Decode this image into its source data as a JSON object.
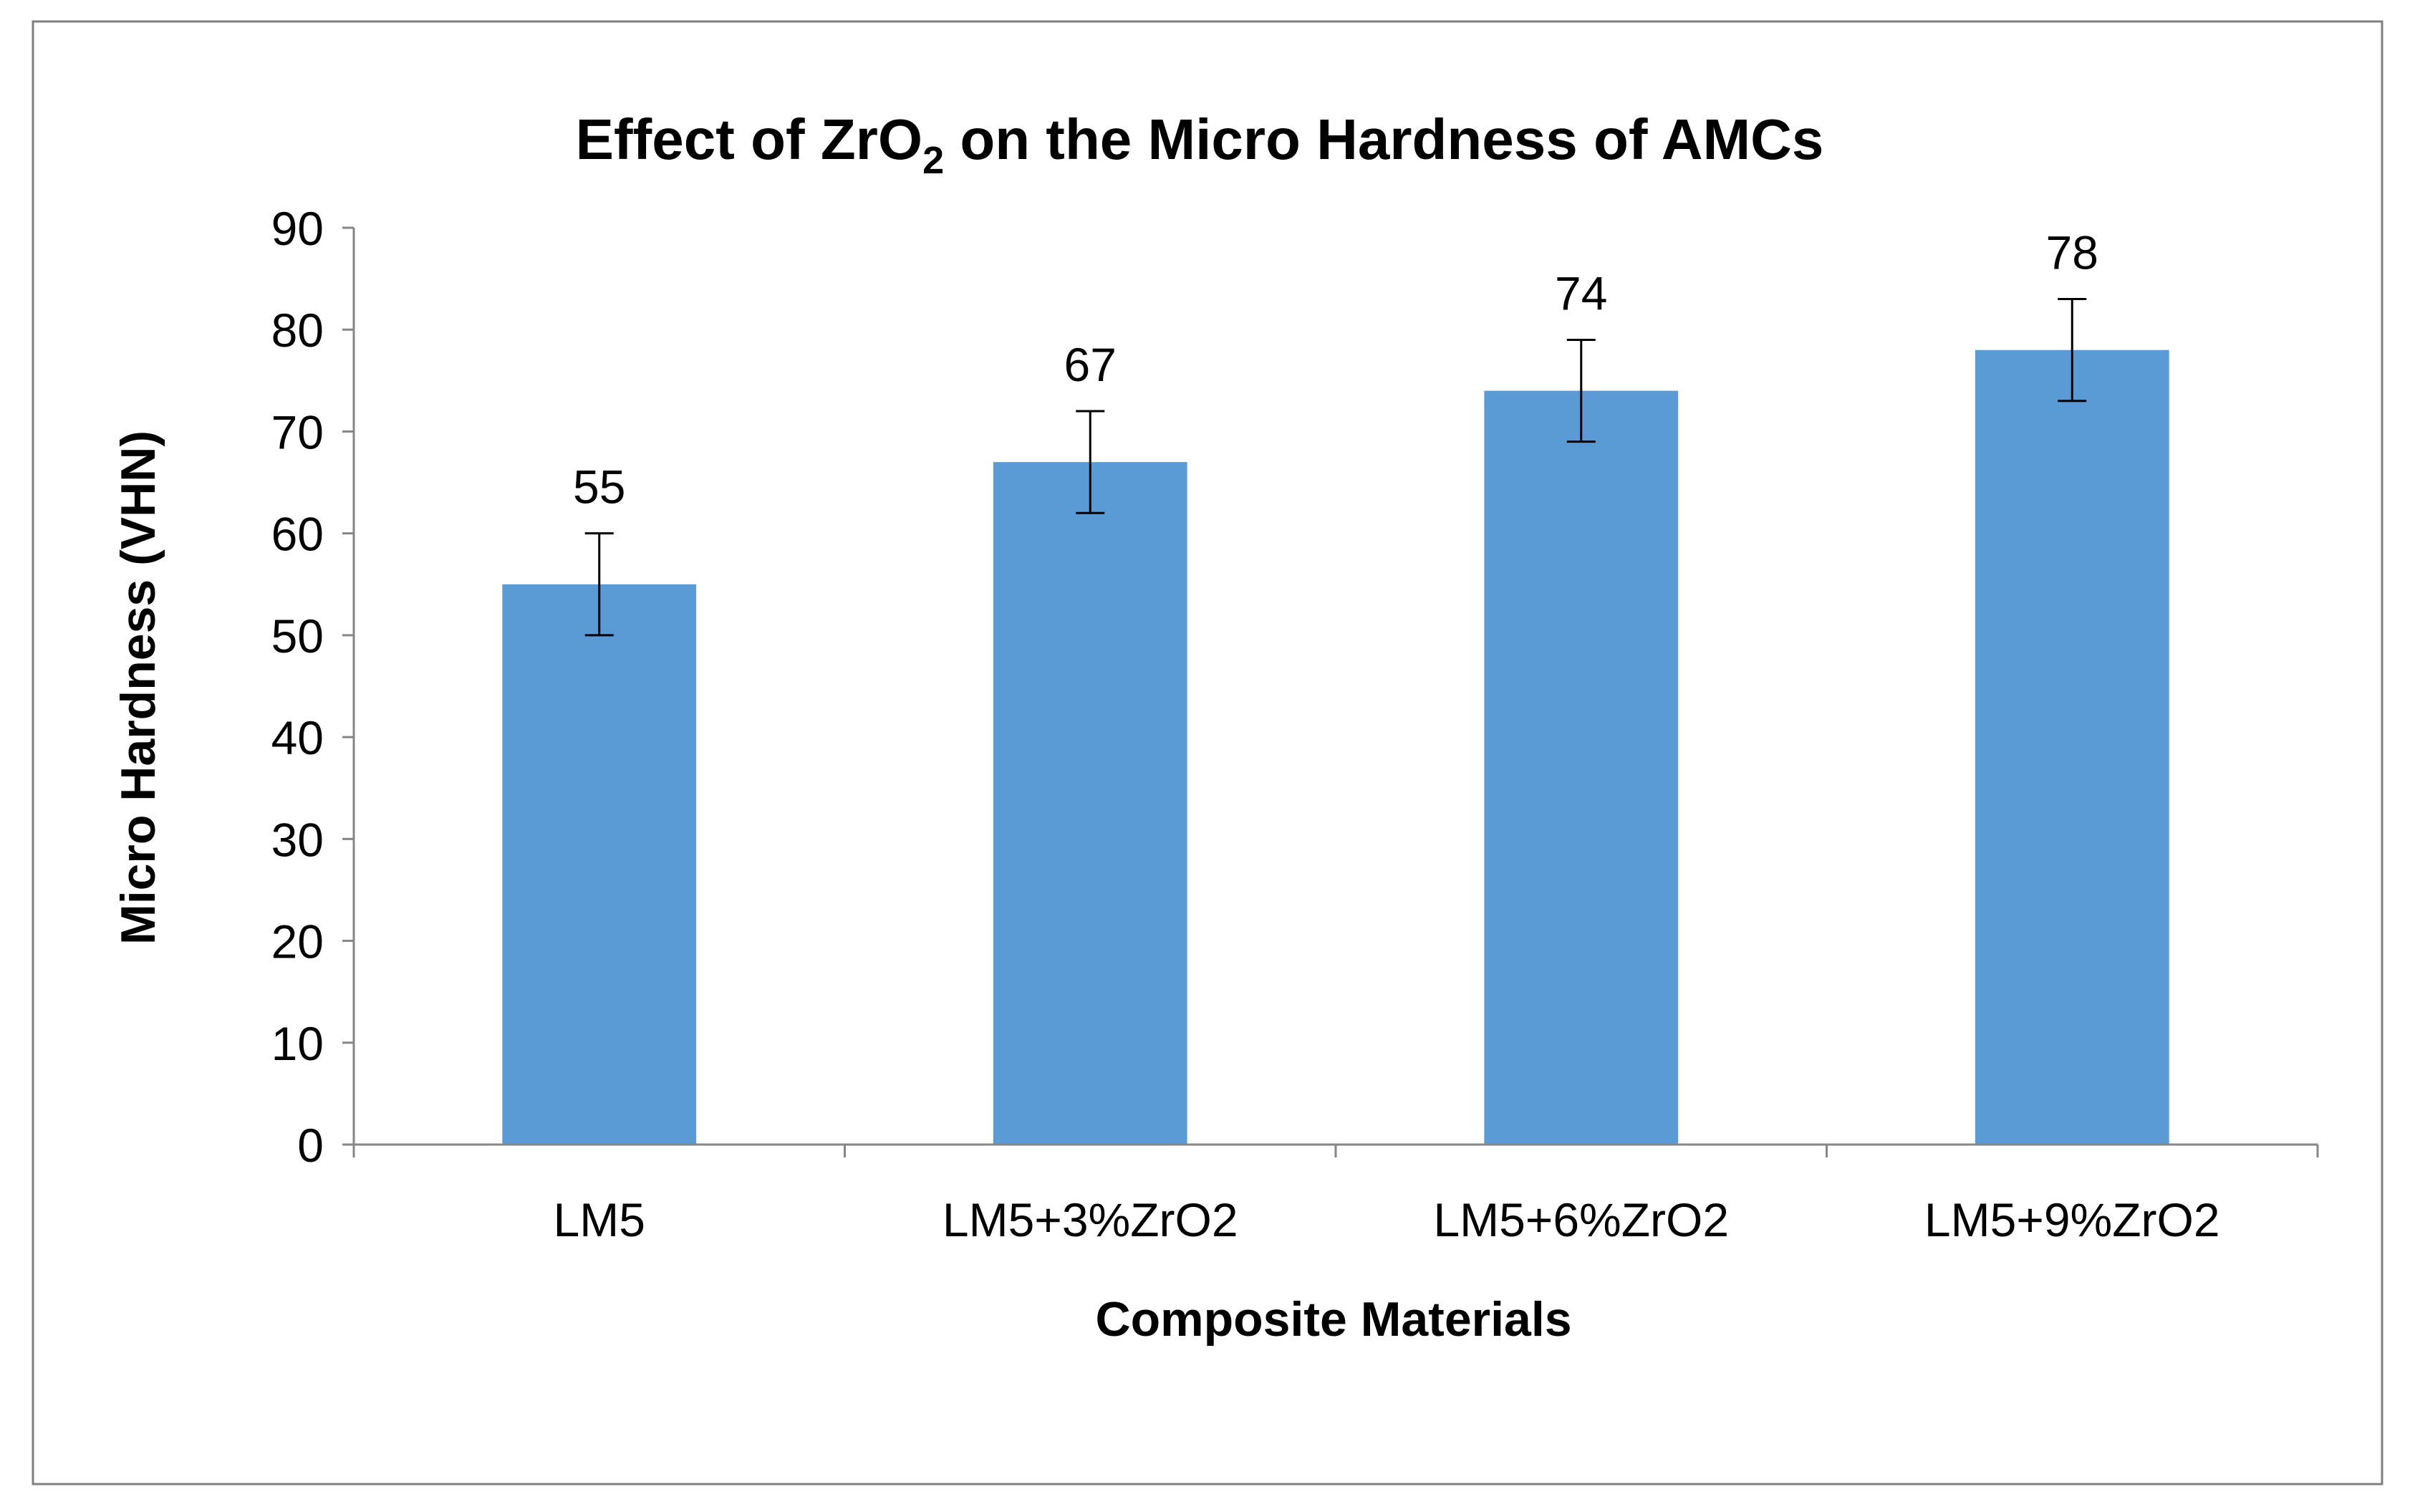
{
  "chart_data": {
    "type": "bar",
    "title_main": "Effect of ZrO",
    "title_sub": "2",
    "title_rest": " on the Micro Hardness of AMCs",
    "xlabel": "Composite Materials",
    "ylabel": "Micro Hardness (VHN)",
    "categories": [
      "LM5",
      "LM5+3%ZrO2",
      "LM5+6%ZrO2",
      "LM5+9%ZrO2"
    ],
    "values": [
      55,
      67,
      74,
      78
    ],
    "error": [
      5,
      5,
      5,
      5
    ],
    "data_labels": [
      "55",
      "67",
      "74",
      "78"
    ],
    "ylim": [
      0,
      90
    ],
    "yticks": [
      0,
      10,
      20,
      30,
      40,
      50,
      60,
      70,
      80,
      90
    ],
    "ytick_labels": [
      "0",
      "10",
      "20",
      "30",
      "40",
      "50",
      "60",
      "70",
      "80",
      "90"
    ],
    "grid": false,
    "bar_color": "#5b9bd5"
  }
}
